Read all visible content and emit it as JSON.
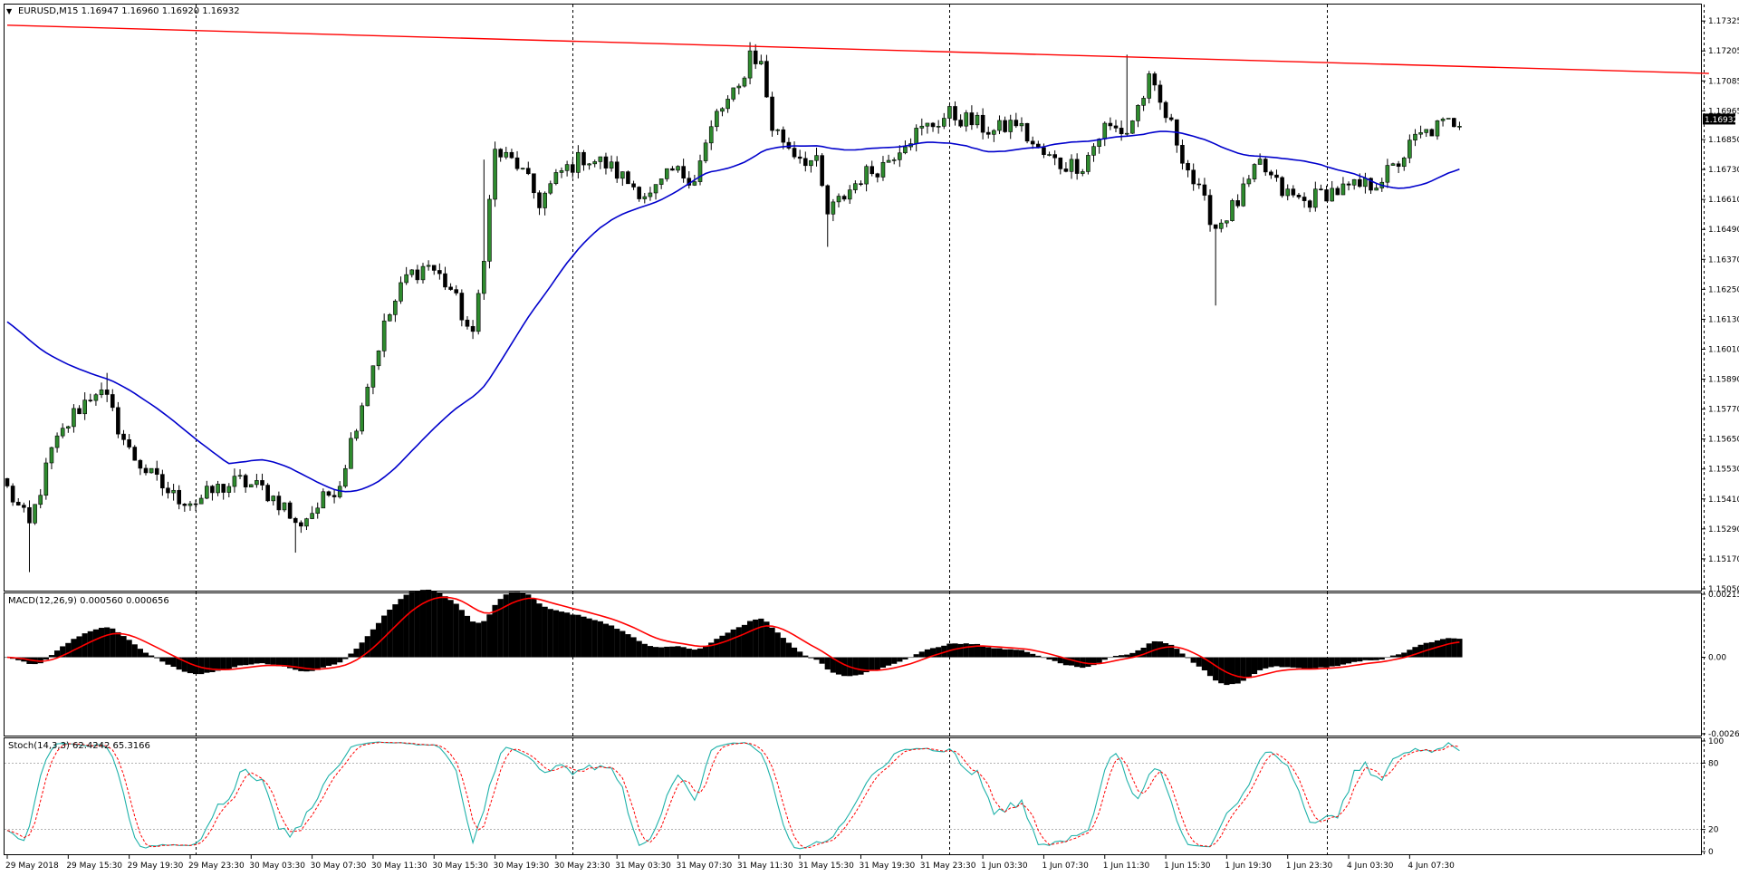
{
  "main_panel": {
    "header_arrow": "▼",
    "header": "EURUSD,M15  1.16947 1.16960 1.16920 1.16932",
    "current_price": "1.16932",
    "price_ticks": [
      "1.17325",
      "1.17205",
      "1.17085",
      "1.16965",
      "1.16850",
      "1.16730",
      "1.16610",
      "1.16490",
      "1.16370",
      "1.16250",
      "1.16130",
      "1.16010",
      "1.15890",
      "1.15770",
      "1.15650",
      "1.15530",
      "1.15410",
      "1.15290",
      "1.15170",
      "1.15050"
    ],
    "colors": {
      "bull": "#2e8b2e",
      "bear": "#000000",
      "ma": "#0000cc",
      "trendline": "#ff0000",
      "grid": "#000000"
    }
  },
  "macd_panel": {
    "header": "MACD(12,26,9) 0.000560 0.000656",
    "ticks": [
      "0.00215",
      "0.00",
      "-0.00261"
    ],
    "colors": {
      "histogram": "#000000",
      "signal": "#ff0000"
    }
  },
  "stoch_panel": {
    "header": "Stoch(14,3,3) 62.4242 65.3166",
    "ticks": [
      "100",
      "80",
      "20",
      "0"
    ],
    "colors": {
      "main": "#20b2aa",
      "signal": "#ff0000"
    }
  },
  "time_labels": [
    "29 May 2018",
    "29 May 15:30",
    "29 May 19:30",
    "29 May 23:30",
    "30 May 03:30",
    "30 May 07:30",
    "30 May 11:30",
    "30 May 15:30",
    "30 May 19:30",
    "30 May 23:30",
    "31 May 03:30",
    "31 May 07:30",
    "31 May 11:30",
    "31 May 15:30",
    "31 May 19:30",
    "31 May 23:30",
    "1 Jun 03:30",
    "1 Jun 07:30",
    "1 Jun 11:30",
    "1 Jun 15:30",
    "1 Jun 19:30",
    "1 Jun 23:30",
    "4 Jun 03:30",
    "4 Jun 07:30"
  ],
  "chart_data": {
    "type": "candlestick",
    "symbol": "EURUSD",
    "timeframe": "M15",
    "ylim": [
      1.1505,
      1.1738
    ],
    "anchors": [
      [
        0,
        1.1545
      ],
      [
        4,
        1.153
      ],
      [
        8,
        1.156
      ],
      [
        12,
        1.1575
      ],
      [
        16,
        1.1585
      ],
      [
        18,
        1.158
      ],
      [
        22,
        1.156
      ],
      [
        26,
        1.155
      ],
      [
        30,
        1.1542
      ],
      [
        34,
        1.154
      ],
      [
        38,
        1.1545
      ],
      [
        42,
        1.1548
      ],
      [
        46,
        1.1545
      ],
      [
        50,
        1.1538
      ],
      [
        52,
        1.153
      ],
      [
        56,
        1.1538
      ],
      [
        60,
        1.1548
      ],
      [
        64,
        1.158
      ],
      [
        68,
        1.161
      ],
      [
        72,
        1.163
      ],
      [
        76,
        1.1635
      ],
      [
        80,
        1.1625
      ],
      [
        84,
        1.1605
      ],
      [
        86,
        1.164
      ],
      [
        88,
        1.168
      ],
      [
        92,
        1.1675
      ],
      [
        96,
        1.166
      ],
      [
        100,
        1.1672
      ],
      [
        104,
        1.1678
      ],
      [
        108,
        1.1675
      ],
      [
        112,
        1.1668
      ],
      [
        116,
        1.1662
      ],
      [
        120,
        1.1672
      ],
      [
        124,
        1.167
      ],
      [
        128,
        1.1695
      ],
      [
        132,
        1.1705
      ],
      [
        134,
        1.172
      ],
      [
        136,
        1.1715
      ],
      [
        138,
        1.169
      ],
      [
        142,
        1.168
      ],
      [
        146,
        1.1675
      ],
      [
        148,
        1.1655
      ],
      [
        150,
        1.166
      ],
      [
        154,
        1.167
      ],
      [
        158,
        1.1675
      ],
      [
        162,
        1.1685
      ],
      [
        166,
        1.169
      ],
      [
        170,
        1.1695
      ],
      [
        174,
        1.1692
      ],
      [
        178,
        1.1688
      ],
      [
        182,
        1.1692
      ],
      [
        186,
        1.168
      ],
      [
        190,
        1.1675
      ],
      [
        194,
        1.1675
      ],
      [
        198,
        1.169
      ],
      [
        202,
        1.1688
      ],
      [
        206,
        1.1708
      ],
      [
        210,
        1.169
      ],
      [
        214,
        1.1668
      ],
      [
        218,
        1.165
      ],
      [
        222,
        1.166
      ],
      [
        226,
        1.1675
      ],
      [
        230,
        1.1664
      ],
      [
        234,
        1.166
      ],
      [
        238,
        1.1664
      ],
      [
        242,
        1.1665
      ],
      [
        246,
        1.1667
      ],
      [
        250,
        1.1673
      ],
      [
        254,
        1.1685
      ],
      [
        258,
        1.169
      ],
      [
        262,
        1.1693
      ]
    ],
    "volatility": 0.00035,
    "spikes": [
      [
        4,
        1.15117,
        "low"
      ],
      [
        18,
        1.15915,
        "high"
      ],
      [
        52,
        1.15195,
        "low"
      ],
      [
        86,
        1.1677,
        "high"
      ],
      [
        134,
        1.1724,
        "high"
      ],
      [
        148,
        1.1642,
        "low"
      ],
      [
        202,
        1.1719,
        "high"
      ],
      [
        218,
        1.16185,
        "low"
      ]
    ],
    "ma_period": 40,
    "trendline": {
      "start": {
        "bar": 0,
        "price": 1.17308
      },
      "end": {
        "bar": 307,
        "price": 1.17115
      }
    },
    "future_bars": 45,
    "vertical_gridlines_at_bars": [
      34,
      102,
      170,
      238,
      306
    ]
  }
}
